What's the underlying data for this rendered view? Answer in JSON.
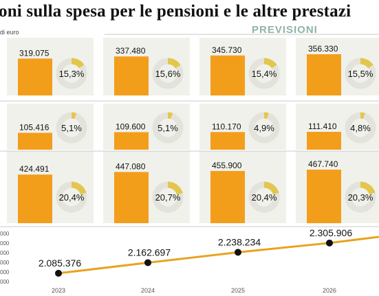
{
  "title": "oni sulla spesa per le pensioni e le altre prestazi",
  "unit_label": "di euro",
  "forecast_label": "PREVISIONI",
  "colors": {
    "bar": "#f29e1b",
    "ring_bg": "#e3e3dc",
    "ring_fg": "#e3c64c",
    "line": "#e8a31f",
    "dot": "#111111",
    "panel": "#f1f1ec",
    "divider": "#c8c8c8"
  },
  "chart_data": {
    "type": "bar",
    "categories": [
      "2023",
      "2024",
      "2025",
      "2026"
    ],
    "rows": [
      {
        "values": [
          "319.075",
          "337.480",
          "345.730",
          "356.330"
        ],
        "numeric": [
          319075,
          337480,
          345730,
          356330
        ],
        "shares": [
          "15,3%",
          "15,6%",
          "15,4%",
          "15,5%"
        ],
        "share_values": [
          15.3,
          15.6,
          15.4,
          15.5
        ]
      },
      {
        "values": [
          "105.416",
          "109.600",
          "110.170",
          "111.410"
        ],
        "numeric": [
          105416,
          109600,
          110170,
          111410
        ],
        "shares": [
          "5,1%",
          "5,1%",
          "4,9%",
          "4,8%"
        ],
        "share_values": [
          5.1,
          5.1,
          4.9,
          4.8
        ]
      },
      {
        "values": [
          "424.491",
          "447.080",
          "455.900",
          "467.740"
        ],
        "numeric": [
          424491,
          447080,
          455900,
          467740
        ],
        "shares": [
          "20,4%",
          "20,7%",
          "20,4%",
          "20,3%"
        ],
        "share_values": [
          20.4,
          20.7,
          20.4,
          20.3
        ]
      }
    ],
    "line_series": {
      "labels": [
        "2.085.376",
        "2.162.697",
        "2.238.234",
        "2.305.906"
      ],
      "values": [
        2085376,
        2162697,
        2238234,
        2305906
      ]
    },
    "y_tick_labels": [
      "000",
      "000",
      "000",
      "000",
      "000",
      "000"
    ]
  }
}
